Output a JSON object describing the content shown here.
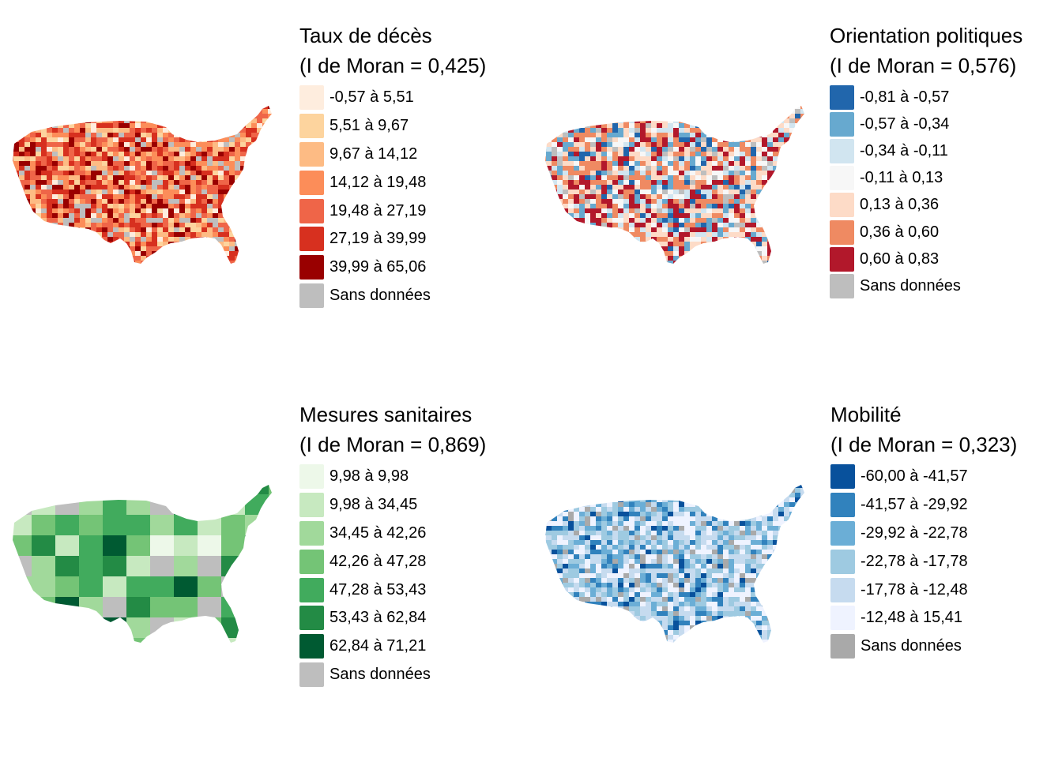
{
  "maps": [
    {
      "id": "deaths",
      "title": "Taux de décès",
      "subtitle": "(I de Moran = 0,425)",
      "weights": [
        1,
        2,
        2,
        3,
        4,
        4,
        3
      ],
      "na_share": 0.09,
      "legend": [
        {
          "label": "-0,57 à 5,51",
          "color": "#FEEDDE"
        },
        {
          "label": "5,51 à 9,67",
          "color": "#FDD49E"
        },
        {
          "label": "9,67 à 14,12",
          "color": "#FDBB84"
        },
        {
          "label": "14,12 à 19,48",
          "color": "#FC8D59"
        },
        {
          "label": "19,48 à 27,19",
          "color": "#EF6548"
        },
        {
          "label": "27,19 à 39,99",
          "color": "#D7301F"
        },
        {
          "label": "39,99 à 65,06",
          "color": "#990000"
        },
        {
          "label": "Sans données",
          "color": "#BEBEBE"
        }
      ]
    },
    {
      "id": "politics",
      "title": "Orientation politiques",
      "subtitle": "(I de Moran = 0,576)",
      "weights": [
        1,
        2,
        2,
        2,
        3,
        4,
        4
      ],
      "na_share": 0.07,
      "legend": [
        {
          "label": "-0,81 à -0,57",
          "color": "#2166AC"
        },
        {
          "label": "-0,57 à -0,34",
          "color": "#67A9CF"
        },
        {
          "label": "-0,34 à -0,11",
          "color": "#D1E5F0"
        },
        {
          "label": "-0,11 à 0,13",
          "color": "#F7F7F7"
        },
        {
          "label": "0,13 à 0,36",
          "color": "#FDDBC7"
        },
        {
          "label": "0,36 à 0,60",
          "color": "#EF8A62"
        },
        {
          "label": "0,60 à 0,83",
          "color": "#B2182B"
        },
        {
          "label": "Sans données",
          "color": "#BEBEBE"
        }
      ]
    },
    {
      "id": "health",
      "title": "Mesures sanitaires",
      "subtitle": "(I de Moran = 0,869)",
      "weights": [
        1,
        2,
        4,
        4,
        3,
        2,
        1
      ],
      "na_share": 0.1,
      "legend": [
        {
          "label": "9,98 à 9,98",
          "color": "#EDF8E9"
        },
        {
          "label": "9,98 à 34,45",
          "color": "#C7E9C0"
        },
        {
          "label": "34,45 à 42,26",
          "color": "#A1D99B"
        },
        {
          "label": "42,26 à 47,28",
          "color": "#74C476"
        },
        {
          "label": "47,28 à 53,43",
          "color": "#41AB5D"
        },
        {
          "label": "53,43 à 62,84",
          "color": "#238B45"
        },
        {
          "label": "62,84 à 71,21",
          "color": "#005A32"
        },
        {
          "label": "Sans données",
          "color": "#BEBEBE"
        }
      ]
    },
    {
      "id": "mobility",
      "title": "Mobilité",
      "subtitle": "(I de Moran = 0,323)",
      "weights": [
        1,
        2,
        3,
        4,
        4,
        4
      ],
      "na_share": 0.08,
      "legend": [
        {
          "label": "-60,00 à -41,57",
          "color": "#08519C"
        },
        {
          "label": "-41,57 à -29,92",
          "color": "#3182BD"
        },
        {
          "label": "-29,92 à -22,78",
          "color": "#6BAED6"
        },
        {
          "label": "-22,78 à -17,78",
          "color": "#9ECAE1"
        },
        {
          "label": "-17,78 à -12,48",
          "color": "#C6DBEF"
        },
        {
          "label": "-12,48 à 15,41",
          "color": "#EFF3FF"
        },
        {
          "label": "Sans données",
          "color": "#A9A9A9"
        }
      ]
    }
  ]
}
